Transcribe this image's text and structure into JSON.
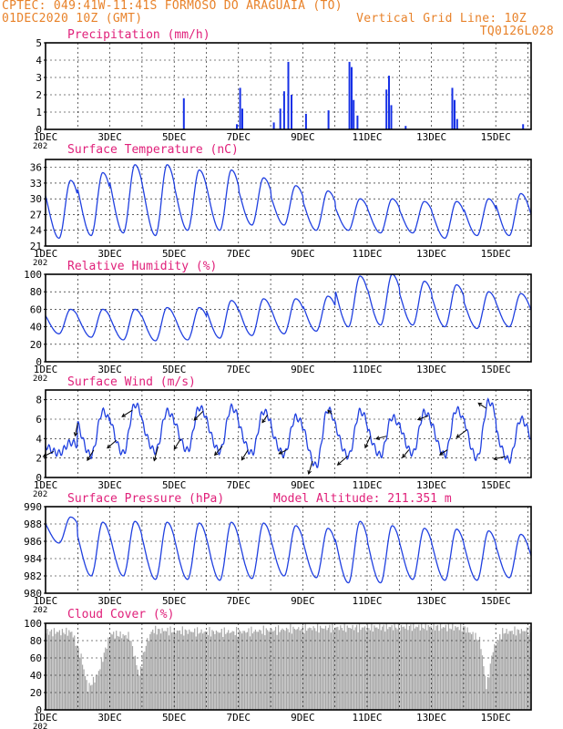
{
  "header": {
    "title_line": "CPTEC:   049:41W-11:41S  FORMOSO DO ARAGUAIA (TO)",
    "date_line": "01DEC2020 10Z (GMT)",
    "grid_note": "Vertical Grid Line: 10Z",
    "model_code": "TQ0126L028"
  },
  "colors": {
    "line": "#2040e0",
    "bar": "#1630e6",
    "cloud": "#a8a8a8",
    "title": "#e0207a",
    "header": "#e8822a",
    "frame": "#000000"
  },
  "x_axis": {
    "tick_labels": [
      "1DEC",
      "3DEC",
      "5DEC",
      "7DEC",
      "9DEC",
      "11DEC",
      "13DEC",
      "15DEC"
    ],
    "tick_days": [
      1,
      3,
      5,
      7,
      9,
      11,
      13,
      15
    ],
    "range_days": [
      1,
      16.1
    ],
    "year_fragment": "202"
  },
  "chart_data": [
    {
      "type": "bar",
      "title": "Precipitation (mm/h)",
      "ylim": [
        0,
        5
      ],
      "yticks": [
        "0",
        "1",
        "2",
        "3",
        "4",
        "5"
      ],
      "bars": [
        {
          "day": 5.3,
          "value": 1.8
        },
        {
          "day": 6.95,
          "value": 0.3
        },
        {
          "day": 7.05,
          "value": 2.4
        },
        {
          "day": 7.12,
          "value": 1.2
        },
        {
          "day": 8.1,
          "value": 0.4
        },
        {
          "day": 8.3,
          "value": 1.2
        },
        {
          "day": 8.42,
          "value": 2.2
        },
        {
          "day": 8.55,
          "value": 3.9
        },
        {
          "day": 8.65,
          "value": 2.0
        },
        {
          "day": 9.1,
          "value": 0.9
        },
        {
          "day": 9.8,
          "value": 1.1
        },
        {
          "day": 10.45,
          "value": 3.9
        },
        {
          "day": 10.52,
          "value": 3.6
        },
        {
          "day": 10.58,
          "value": 1.7
        },
        {
          "day": 10.7,
          "value": 0.8
        },
        {
          "day": 11.6,
          "value": 2.3
        },
        {
          "day": 11.68,
          "value": 3.1
        },
        {
          "day": 11.75,
          "value": 1.4
        },
        {
          "day": 12.2,
          "value": 0.2
        },
        {
          "day": 13.65,
          "value": 2.4
        },
        {
          "day": 13.72,
          "value": 1.7
        },
        {
          "day": 13.8,
          "value": 0.6
        },
        {
          "day": 15.85,
          "value": 0.3
        }
      ]
    },
    {
      "type": "line",
      "title": "Surface Temperature (nC)",
      "ylim": [
        21,
        37.5
      ],
      "yticks": [
        "21",
        "24",
        "27",
        "30",
        "33",
        "36"
      ],
      "daily_min": [
        22.5,
        23,
        23.5,
        23,
        24,
        24,
        25,
        25,
        24,
        24,
        23.5,
        23.5,
        22.5,
        23,
        23
      ],
      "daily_max": [
        33.5,
        35,
        36.5,
        36.5,
        35.5,
        35.5,
        34,
        32.5,
        31.5,
        30,
        30,
        29.5,
        29.5,
        30,
        31
      ]
    },
    {
      "type": "line",
      "title": "Relative Humidity (%)",
      "ylim": [
        0,
        100
      ],
      "yticks": [
        "0",
        "20",
        "40",
        "60",
        "80",
        "100"
      ],
      "daily_min": [
        32,
        28,
        25,
        24,
        25,
        27,
        30,
        32,
        35,
        40,
        42,
        42,
        40,
        38,
        40
      ],
      "daily_max": [
        60,
        60,
        60,
        62,
        62,
        70,
        72,
        72,
        75,
        98,
        100,
        92,
        88,
        80,
        78
      ]
    },
    {
      "type": "line",
      "title": "Surface Wind (m/s)",
      "ylim": [
        0,
        9
      ],
      "yticks": [
        "0",
        "2",
        "4",
        "6",
        "8"
      ],
      "daily_min": [
        2.5,
        2.3,
        2.5,
        2.7,
        2.8,
        2.7,
        2.5,
        2.4,
        1.2,
        2.2,
        2.3,
        2.5,
        2.3,
        2.0,
        1.8
      ],
      "daily_max": [
        3.6,
        6.8,
        7.5,
        6.8,
        7.2,
        7.2,
        6.8,
        6.2,
        7.0,
        6.8,
        6.2,
        6.7,
        7.0,
        7.8,
        6.0
      ],
      "arrows": [
        {
          "day": 1.25,
          "u": -0.8,
          "v": -0.4
        },
        {
          "day": 2.0,
          "u": -0.2,
          "v": -1.0
        },
        {
          "day": 2.5,
          "u": -0.5,
          "v": -0.8
        },
        {
          "day": 3.2,
          "u": -0.7,
          "v": -0.6
        },
        {
          "day": 3.7,
          "u": -0.8,
          "v": -0.5
        },
        {
          "day": 4.5,
          "u": -0.3,
          "v": -1.1
        },
        {
          "day": 5.2,
          "u": -0.5,
          "v": -0.8
        },
        {
          "day": 5.9,
          "u": -0.7,
          "v": -0.7
        },
        {
          "day": 6.5,
          "u": -0.6,
          "v": -0.7
        },
        {
          "day": 7.3,
          "u": -0.5,
          "v": -0.8
        },
        {
          "day": 7.9,
          "u": -0.4,
          "v": -0.6
        },
        {
          "day": 8.5,
          "u": -0.6,
          "v": -0.3
        },
        {
          "day": 9.3,
          "u": -0.3,
          "v": -1.0
        },
        {
          "day": 9.9,
          "u": -0.3,
          "v": 0.3
        },
        {
          "day": 10.4,
          "u": -0.8,
          "v": -0.7
        },
        {
          "day": 11.1,
          "u": -0.4,
          "v": -0.9
        },
        {
          "day": 11.6,
          "u": -0.8,
          "v": -0.2
        },
        {
          "day": 12.3,
          "u": -0.5,
          "v": -0.6
        },
        {
          "day": 12.9,
          "u": -0.8,
          "v": -0.3
        },
        {
          "day": 13.5,
          "u": -0.6,
          "v": -0.4
        },
        {
          "day": 14.1,
          "u": -0.8,
          "v": -0.6
        },
        {
          "day": 14.7,
          "u": -0.6,
          "v": 0.4
        },
        {
          "day": 15.3,
          "u": -0.9,
          "v": -0.2
        }
      ]
    },
    {
      "type": "line",
      "title": "Surface Pressure (hPa)",
      "subtitle": "Model Altitude: 211.351  m",
      "ylim": [
        980,
        990
      ],
      "yticks": [
        "980",
        "982",
        "984",
        "986",
        "988",
        "990"
      ],
      "daily_min": [
        985.8,
        982.0,
        982.0,
        981.6,
        981.6,
        981.5,
        981.7,
        982.0,
        981.8,
        981.2,
        981.2,
        981.6,
        981.5,
        981.5,
        981.8
      ],
      "daily_max": [
        988.8,
        988.2,
        988.3,
        988.2,
        988.1,
        988.2,
        988.1,
        987.8,
        987.5,
        988.3,
        987.8,
        987.5,
        987.4,
        987.2,
        986.8
      ]
    },
    {
      "type": "area",
      "title": "Cloud Cover (%)",
      "ylim": [
        0,
        100
      ],
      "yticks": [
        "0",
        "20",
        "40",
        "60",
        "80",
        "100"
      ],
      "profile": [
        {
          "day": 1.0,
          "value": 90
        },
        {
          "day": 1.8,
          "value": 90
        },
        {
          "day": 2.1,
          "value": 60
        },
        {
          "day": 2.3,
          "value": 25
        },
        {
          "day": 2.6,
          "value": 40
        },
        {
          "day": 3.0,
          "value": 88
        },
        {
          "day": 3.6,
          "value": 85
        },
        {
          "day": 3.9,
          "value": 40
        },
        {
          "day": 4.1,
          "value": 75
        },
        {
          "day": 4.3,
          "value": 92
        },
        {
          "day": 6.0,
          "value": 90
        },
        {
          "day": 7.0,
          "value": 90
        },
        {
          "day": 8.0,
          "value": 92
        },
        {
          "day": 9.0,
          "value": 94
        },
        {
          "day": 10.0,
          "value": 95
        },
        {
          "day": 11.0,
          "value": 95
        },
        {
          "day": 12.0,
          "value": 96
        },
        {
          "day": 13.0,
          "value": 96
        },
        {
          "day": 14.0,
          "value": 95
        },
        {
          "day": 14.5,
          "value": 80
        },
        {
          "day": 14.7,
          "value": 25
        },
        {
          "day": 14.9,
          "value": 70
        },
        {
          "day": 15.2,
          "value": 90
        },
        {
          "day": 16.1,
          "value": 92
        }
      ]
    }
  ]
}
